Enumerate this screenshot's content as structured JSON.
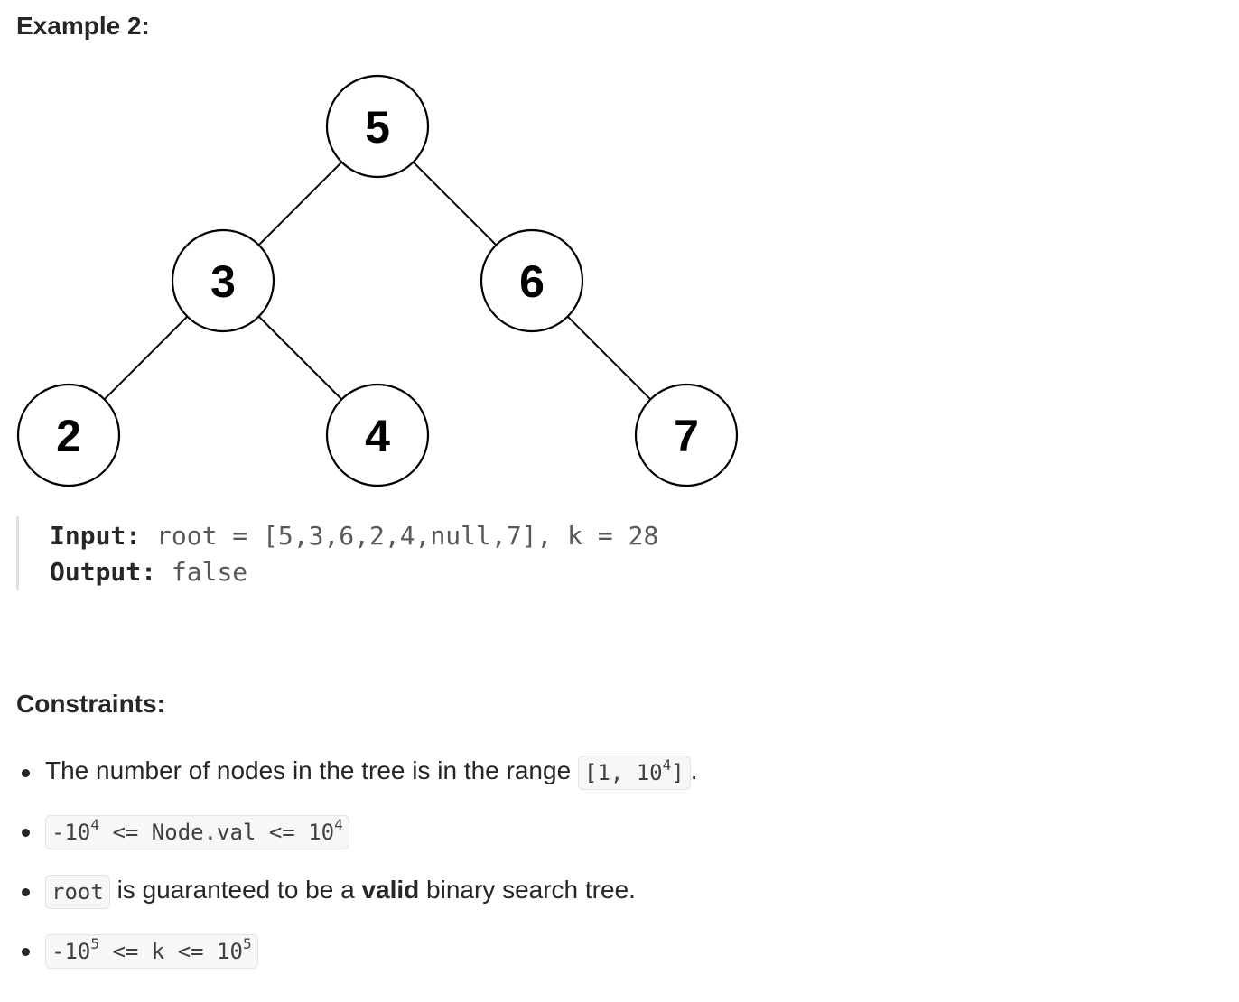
{
  "example": {
    "heading": "Example 2:",
    "input_label": "Input:",
    "input_value": "root = [5,3,6,2,4,null,7], k = 28",
    "output_label": "Output:",
    "output_value": "false"
  },
  "tree": {
    "nodes": [
      {
        "id": "n5",
        "label": "5"
      },
      {
        "id": "n3",
        "label": "3"
      },
      {
        "id": "n6",
        "label": "6"
      },
      {
        "id": "n2",
        "label": "2"
      },
      {
        "id": "n4",
        "label": "4"
      },
      {
        "id": "n7",
        "label": "7"
      }
    ],
    "edges": [
      {
        "from": "n5",
        "to": "n3"
      },
      {
        "from": "n5",
        "to": "n6"
      },
      {
        "from": "n3",
        "to": "n2"
      },
      {
        "from": "n3",
        "to": "n4"
      },
      {
        "from": "n6",
        "to": "n7"
      }
    ]
  },
  "constraints": {
    "heading": "Constraints:",
    "c1": {
      "text": "The number of nodes in the tree is in the range",
      "code_a": "[1, 10",
      "code_sup": "4",
      "code_b": "]",
      "suffix": "."
    },
    "c2": {
      "code_a": "-10",
      "code_sup1": "4",
      "code_mid": " <= Node.val <= 10",
      "code_sup2": "4"
    },
    "c3": {
      "code": "root",
      "text_a": " is guaranteed to be a ",
      "bold": "valid",
      "text_b": " binary search tree."
    },
    "c4": {
      "code_a": "-10",
      "code_sup1": "5",
      "code_mid": " <= k <= 10",
      "code_sup2": "5"
    }
  }
}
